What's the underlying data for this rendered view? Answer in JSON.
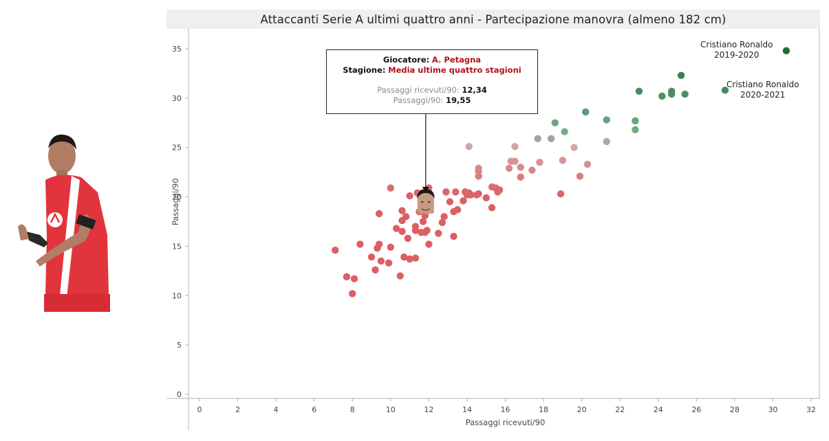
{
  "title": "Attaccanti Serie A ultimi quattro anni - Partecipazione manovra (almeno 182 cm)",
  "player_image": {
    "description": "A. Petagna in red Monza jersey"
  },
  "tooltip": {
    "player_label": "Giocatore:",
    "player_value": "A. Petagna",
    "season_label": "Stagione:",
    "season_value": "Media ultime quattro stagioni",
    "x_label": "Passaggi ricevuti/90:",
    "x_value": "12,34",
    "y_label": "Passaggi/90:",
    "y_value": "19,55"
  },
  "annotations": [
    {
      "line1": "Cristiano Ronaldo",
      "line2": "2019-2020"
    },
    {
      "line1": "Cristiano Ronaldo",
      "line2": "2020-2021"
    }
  ],
  "colors": {
    "low": "#dc5f63",
    "mid": "#d6a6a8",
    "high_light": "#74ad88",
    "high_dark": "#1e6b37",
    "title_bg": "#eeeff1",
    "highlight_text": "#b0121b"
  },
  "chart_data": {
    "type": "scatter",
    "title": "Attaccanti Serie A ultimi quattro anni - Partecipazione manovra (almeno 182 cm)",
    "xlabel": "Passaggi ricevuti/90",
    "ylabel": "Passaggi/90",
    "xlim": [
      0,
      32
    ],
    "ylim": [
      0,
      35
    ],
    "xticks": [
      0,
      2,
      4,
      6,
      8,
      10,
      12,
      14,
      16,
      18,
      20,
      22,
      24,
      26,
      28,
      30,
      32
    ],
    "yticks": [
      0,
      5,
      10,
      15,
      20,
      25,
      30,
      35
    ],
    "grid": false,
    "color_encoding": "diverging red-to-green by Passaggi/90",
    "highlight": {
      "name": "A. Petagna",
      "season": "Media ultime quattro stagioni",
      "x": 12.34,
      "y": 19.55
    },
    "points": [
      {
        "x": 7.1,
        "y": 14.6
      },
      {
        "x": 7.7,
        "y": 11.9
      },
      {
        "x": 8.0,
        "y": 10.2
      },
      {
        "x": 8.1,
        "y": 11.7
      },
      {
        "x": 8.4,
        "y": 15.2
      },
      {
        "x": 9.0,
        "y": 13.9
      },
      {
        "x": 9.2,
        "y": 12.6
      },
      {
        "x": 9.3,
        "y": 14.8
      },
      {
        "x": 9.4,
        "y": 18.3
      },
      {
        "x": 9.4,
        "y": 15.2
      },
      {
        "x": 9.5,
        "y": 13.5
      },
      {
        "x": 9.9,
        "y": 13.3
      },
      {
        "x": 10.0,
        "y": 14.9
      },
      {
        "x": 10.0,
        "y": 20.9
      },
      {
        "x": 10.3,
        "y": 16.8
      },
      {
        "x": 10.5,
        "y": 12.0
      },
      {
        "x": 10.6,
        "y": 17.6
      },
      {
        "x": 10.6,
        "y": 18.6
      },
      {
        "x": 10.6,
        "y": 16.5
      },
      {
        "x": 10.7,
        "y": 13.9
      },
      {
        "x": 10.8,
        "y": 18.0
      },
      {
        "x": 10.9,
        "y": 15.8
      },
      {
        "x": 11.0,
        "y": 13.7
      },
      {
        "x": 11.0,
        "y": 20.1
      },
      {
        "x": 11.3,
        "y": 13.8
      },
      {
        "x": 11.3,
        "y": 16.6
      },
      {
        "x": 11.3,
        "y": 17.0
      },
      {
        "x": 11.4,
        "y": 20.4
      },
      {
        "x": 11.5,
        "y": 18.5
      },
      {
        "x": 11.6,
        "y": 16.4
      },
      {
        "x": 11.7,
        "y": 17.5
      },
      {
        "x": 11.7,
        "y": 19.0
      },
      {
        "x": 11.8,
        "y": 16.4
      },
      {
        "x": 11.8,
        "y": 18.1
      },
      {
        "x": 11.9,
        "y": 16.6
      },
      {
        "x": 12.0,
        "y": 15.2
      },
      {
        "x": 12.0,
        "y": 20.9
      },
      {
        "x": 12.5,
        "y": 16.3
      },
      {
        "x": 12.7,
        "y": 17.4
      },
      {
        "x": 12.8,
        "y": 18.0
      },
      {
        "x": 12.9,
        "y": 20.5
      },
      {
        "x": 13.1,
        "y": 19.5
      },
      {
        "x": 13.3,
        "y": 16.0
      },
      {
        "x": 13.3,
        "y": 18.5
      },
      {
        "x": 13.4,
        "y": 20.5
      },
      {
        "x": 13.5,
        "y": 18.7
      },
      {
        "x": 13.8,
        "y": 19.6
      },
      {
        "x": 13.9,
        "y": 20.5
      },
      {
        "x": 14.0,
        "y": 20.2
      },
      {
        "x": 14.1,
        "y": 20.4
      },
      {
        "x": 14.1,
        "y": 25.1
      },
      {
        "x": 14.2,
        "y": 20.2
      },
      {
        "x": 14.5,
        "y": 20.2
      },
      {
        "x": 14.6,
        "y": 20.3
      },
      {
        "x": 14.6,
        "y": 22.9
      },
      {
        "x": 14.6,
        "y": 22.6
      },
      {
        "x": 14.6,
        "y": 22.1
      },
      {
        "x": 15.0,
        "y": 19.9
      },
      {
        "x": 15.3,
        "y": 21.0
      },
      {
        "x": 15.3,
        "y": 18.9
      },
      {
        "x": 15.5,
        "y": 20.9
      },
      {
        "x": 15.6,
        "y": 20.5
      },
      {
        "x": 15.7,
        "y": 20.7
      },
      {
        "x": 16.2,
        "y": 22.9
      },
      {
        "x": 16.3,
        "y": 23.6
      },
      {
        "x": 16.5,
        "y": 23.6
      },
      {
        "x": 16.5,
        "y": 25.1
      },
      {
        "x": 16.8,
        "y": 23.0
      },
      {
        "x": 16.8,
        "y": 22.0
      },
      {
        "x": 17.4,
        "y": 22.7
      },
      {
        "x": 17.7,
        "y": 25.9
      },
      {
        "x": 17.8,
        "y": 23.5
      },
      {
        "x": 18.4,
        "y": 25.9
      },
      {
        "x": 18.6,
        "y": 27.5
      },
      {
        "x": 18.9,
        "y": 20.3
      },
      {
        "x": 19.0,
        "y": 23.7
      },
      {
        "x": 19.1,
        "y": 26.6
      },
      {
        "x": 19.6,
        "y": 25.0
      },
      {
        "x": 19.9,
        "y": 22.1
      },
      {
        "x": 20.2,
        "y": 28.6
      },
      {
        "x": 20.3,
        "y": 23.3
      },
      {
        "x": 21.3,
        "y": 27.8
      },
      {
        "x": 21.3,
        "y": 25.6
      },
      {
        "x": 22.8,
        "y": 27.7
      },
      {
        "x": 22.8,
        "y": 26.8
      },
      {
        "x": 23.0,
        "y": 30.7
      },
      {
        "x": 24.2,
        "y": 30.2
      },
      {
        "x": 24.7,
        "y": 30.4
      },
      {
        "x": 24.7,
        "y": 30.7
      },
      {
        "x": 25.2,
        "y": 32.3
      },
      {
        "x": 25.4,
        "y": 30.4
      },
      {
        "x": 27.5,
        "y": 30.8,
        "label": "Cristiano Ronaldo 2020-2021"
      },
      {
        "x": 30.7,
        "y": 34.8,
        "label": "Cristiano Ronaldo 2019-2020"
      }
    ]
  }
}
